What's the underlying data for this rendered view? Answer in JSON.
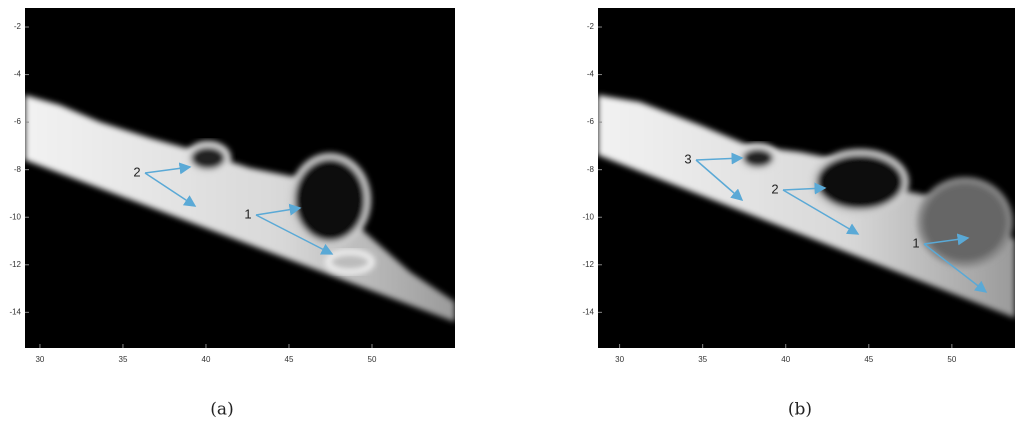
{
  "chart_data": [
    {
      "type": "image",
      "xlim": [
        29.1,
        55
      ],
      "ylim": [
        -15.5,
        -1.2
      ],
      "xticks": [
        30,
        35,
        40,
        45,
        50
      ],
      "yticks": [
        -2,
        -4,
        -6,
        -8,
        -10,
        -12,
        -14
      ],
      "annotations": [
        "2",
        "1"
      ],
      "caption": "(a)"
    },
    {
      "type": "image",
      "xlim": [
        28.7,
        53.8
      ],
      "ylim": [
        -15.5,
        -1.2
      ],
      "xticks": [
        30,
        35,
        40,
        45,
        50
      ],
      "yticks": [
        -2,
        -4,
        -6,
        -8,
        -10,
        -12,
        -14
      ],
      "annotations": [
        "3",
        "2",
        "1"
      ],
      "caption": "(b)"
    }
  ]
}
